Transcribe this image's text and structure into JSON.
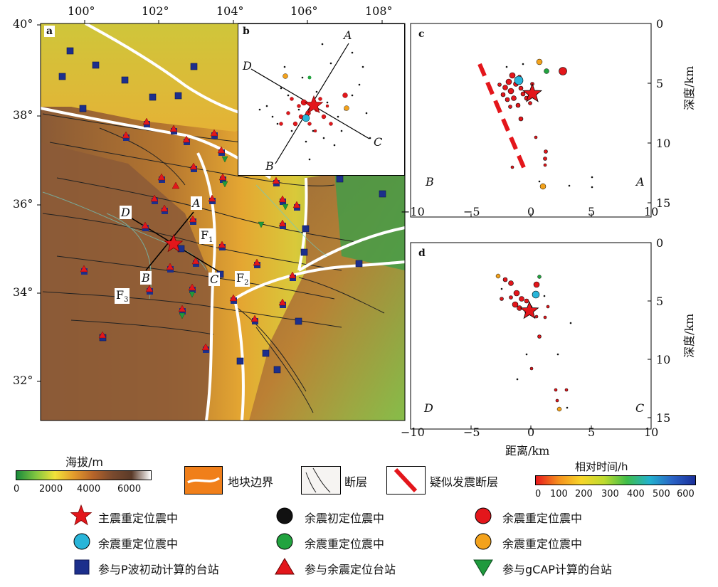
{
  "map_a": {
    "panel_label": "a",
    "lon_ticks": [
      "100°",
      "102°",
      "104°",
      "106°",
      "108°"
    ],
    "lat_ticks": [
      "40°",
      "38°",
      "36°",
      "34°",
      "32°"
    ],
    "profile_labels": {
      "A": "A",
      "B": "B",
      "C": "C",
      "D": "D"
    },
    "fault_labels": {
      "f1": "F",
      "f1_sub": "1",
      "f2": "F",
      "f2_sub": "2",
      "f3": "F",
      "f3_sub": "3"
    }
  },
  "inset_b": {
    "panel_label": "b",
    "profile_labels": {
      "A": "A",
      "B": "B",
      "C": "C",
      "D": "D"
    }
  },
  "panel_c": {
    "panel_label": "c",
    "x_ticks": [
      "−10",
      "−5",
      "0",
      "5",
      "10"
    ],
    "depth_ticks": [
      "0",
      "5",
      "10",
      "15"
    ],
    "depth_axis_label": "深度/km",
    "left_end": "B",
    "right_end": "A"
  },
  "panel_d": {
    "panel_label": "d",
    "x_ticks": [
      "−10",
      "−5",
      "0",
      "5",
      "10"
    ],
    "depth_ticks": [
      "0",
      "5",
      "10",
      "15"
    ],
    "depth_axis_label": "深度/km",
    "left_end": "D",
    "right_end": "C",
    "x_axis_label": "距离/km"
  },
  "elevation_bar": {
    "title": "海拔/m",
    "ticks": [
      "0",
      "2000",
      "4000",
      "6000"
    ],
    "colors": [
      "#1a8a3c",
      "#7fc540",
      "#f2e33a",
      "#e39a2c",
      "#b5642a",
      "#7a4a2e",
      "#5a3a28",
      "#ffffff"
    ]
  },
  "time_bar": {
    "title": "相对时间/h",
    "ticks": [
      "0",
      "100",
      "200",
      "300",
      "400",
      "500",
      "600"
    ],
    "colors": [
      "#e8191c",
      "#f5901e",
      "#f7d62a",
      "#bedb2f",
      "#3fbd4a",
      "#22b1ce",
      "#2a63c6",
      "#1a2f9a"
    ]
  },
  "legend": {
    "block_boundary": "地块边界",
    "fault": "断层",
    "suspected_fault": "疑似发震断层",
    "mainshock": "主震重定位震中",
    "aftershock_initial": "余震初定位震中",
    "aftershock_red": "余震重定位震中",
    "aftershock_cyan": "余震重定位震中",
    "aftershock_green": "余震重定位震中",
    "aftershock_orange": "余震重定位震中",
    "station_p_wave": "参与P波初动计算的台站",
    "station_relocation": "参与余震定位台站",
    "station_gcap": "参与gCAP计算的台站"
  },
  "colors": {
    "boundary": "#ffffff",
    "fault": "#222222",
    "suspected_fault": "#e3161b",
    "star": "#e3161b",
    "station_blue": "#1c2f8c",
    "station_red": "#e3161b",
    "station_green": "#1f9a3d",
    "quake_black": "#111111",
    "quake_red": "#e3161b",
    "quake_cyan": "#29b5d9",
    "quake_green": "#22a33f",
    "quake_orange": "#f3a21c"
  }
}
